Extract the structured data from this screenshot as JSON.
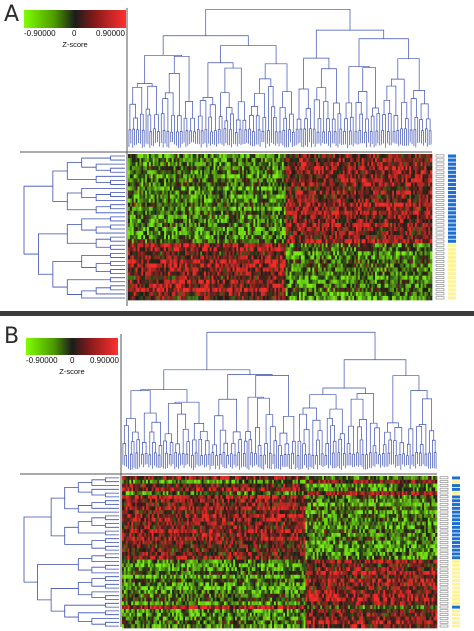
{
  "panels": [
    {
      "id": "A",
      "letter": "A",
      "legend": {
        "min_label": "-0.90000",
        "mid_label": "0",
        "max_label": "0.90000",
        "title": "Z-score",
        "colors": [
          "#7fff00",
          "#1c1c1c",
          "#ff3030"
        ]
      },
      "n_columns": 160,
      "n_rows": 36,
      "column_clusters": 2,
      "sample_class_colors": [
        "#1f6fd0",
        "#fff39a"
      ],
      "row_classes": "BBBBBBBBBBBBBBBBBBBBBBYYYYYYYYYYYYYY"
    },
    {
      "id": "B",
      "letter": "B",
      "legend": {
        "min_label": "-0.90000",
        "mid_label": "0",
        "max_label": "0.90000",
        "title": "Z-score",
        "colors": [
          "#7fff00",
          "#1c1c1c",
          "#ff3030"
        ]
      },
      "n_columns": 170,
      "n_rows": 40,
      "column_clusters": 2,
      "sample_class_colors": [
        "#1f6fd0",
        "#fff39a"
      ],
      "row_classes": "BYBBYBBBBBBBBBBBBBBBBBYYYYYYYYYYYYBYYYYY"
    }
  ],
  "colors": {
    "dendrogram": "#3b4fb0",
    "divider": "#3c3c3c",
    "axis_line": "#555555"
  }
}
